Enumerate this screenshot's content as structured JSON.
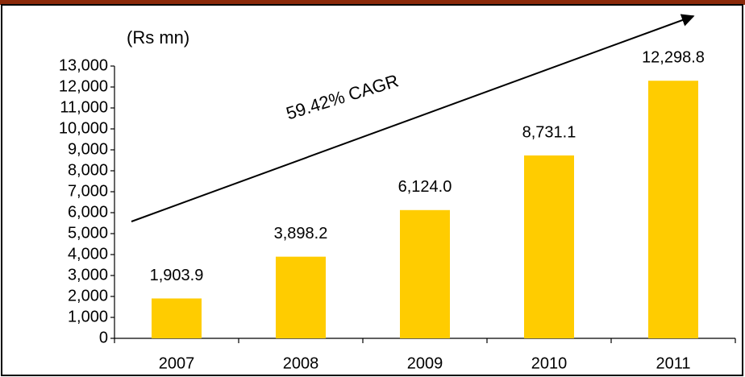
{
  "chart_data": {
    "type": "bar",
    "y_axis_label": "(Rs mn)",
    "annotation": "59.42% CAGR",
    "categories": [
      "2007",
      "2008",
      "2009",
      "2010",
      "2011"
    ],
    "values": [
      1903.9,
      3898.2,
      6124.0,
      8731.1,
      12298.8
    ],
    "value_labels": [
      "1,903.9",
      "3,898.2",
      "6,124.0",
      "8,731.1",
      "12,298.8"
    ],
    "color": "#ffcc00",
    "ylim": [
      0,
      13000
    ],
    "yticks": [
      0,
      {
        "value": 1000,
        "label": "1,000"
      },
      {
        "value": 2000,
        "label": "2,000"
      },
      {
        "value": 3000,
        "label": "3,000"
      },
      {
        "value": 4000,
        "label": "4,000"
      },
      {
        "value": 5000,
        "label": "5,000"
      },
      {
        "value": 6000,
        "label": "6,000"
      },
      {
        "value": 7000,
        "label": "7,000"
      },
      {
        "value": 8000,
        "label": "8,000"
      },
      {
        "value": 9000,
        "label": "9,000"
      },
      {
        "value": 10000,
        "label": "10,000"
      },
      {
        "value": 11000,
        "label": "11,000"
      },
      {
        "value": 12000,
        "label": "12,000"
      },
      {
        "value": 13000,
        "label": "13,000"
      }
    ],
    "grid": false
  }
}
